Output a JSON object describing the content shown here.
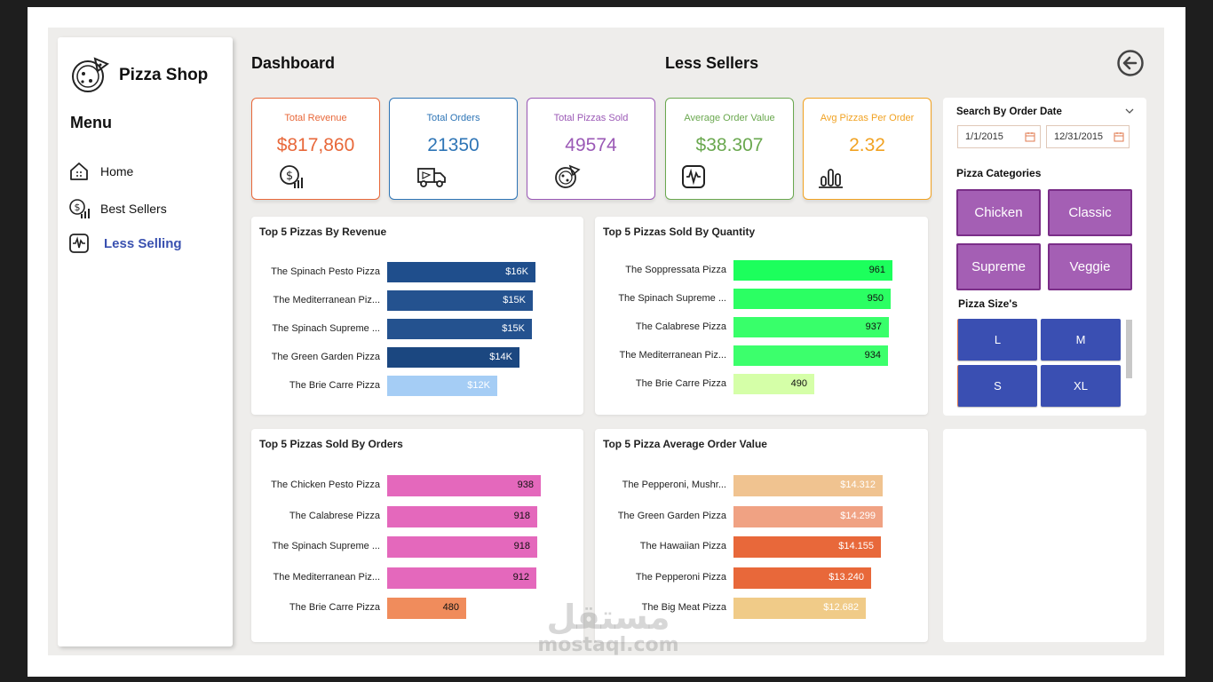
{
  "brand": {
    "shop_name": "Pizza Shop",
    "logo_icon": "pizza-logo-icon"
  },
  "sidebar": {
    "menu_title": "Menu",
    "items": [
      {
        "label": "Home",
        "icon": "home-icon",
        "active": false
      },
      {
        "label": "Best Sellers",
        "icon": "money-chart-icon",
        "active": false
      },
      {
        "label": "Less Selling",
        "icon": "pulse-icon",
        "active": true
      }
    ]
  },
  "header": {
    "title": "Dashboard",
    "subtitle": "Less Sellers",
    "back_icon": "back-arrow-icon"
  },
  "kpis": [
    {
      "label": "Total Revenue",
      "value": "$817,860",
      "color": "#e8683a",
      "icon": "revenue-icon"
    },
    {
      "label": "Total Orders",
      "value": "21350",
      "color": "#2e75b6",
      "icon": "delivery-truck-icon"
    },
    {
      "label": "Total Pizzas Sold",
      "value": "49574",
      "color": "#9b59b6",
      "icon": "pizza-icon"
    },
    {
      "label": "Average Order Value",
      "value": "$38.307",
      "color": "#6aa84f",
      "icon": "pulse-icon"
    },
    {
      "label": "Avg Pizzas Per Order",
      "value": "2.32",
      "color": "#f1a222",
      "icon": "bar-chart-icon"
    }
  ],
  "chart_data": [
    {
      "type": "bar",
      "title": "Top 5 Pizzas By Revenue",
      "categories": [
        "The Spinach Pesto Pizza",
        "The Mediterranean Piz...",
        "The Spinach Supreme ...",
        "The Green Garden Pizza",
        "The Brie Carre Pizza"
      ],
      "values": [
        15.6,
        15.36,
        15.28,
        13.96,
        11.59
      ],
      "labels": [
        "$16K",
        "$15K",
        "$15K",
        "$14K",
        "$12K"
      ],
      "colors": [
        "#1f4e8c",
        "#24528f",
        "#24528f",
        "#1b4780",
        "#a5cdf5"
      ],
      "label_colors": [
        "#ffffff",
        "#ffffff",
        "#ffffff",
        "#ffffff",
        "#ffffff"
      ],
      "xlim": [
        0,
        19
      ]
    },
    {
      "type": "bar",
      "title": "Top 5 Pizzas Sold By Quantity",
      "categories": [
        "The Soppressata Pizza",
        "The Spinach Supreme ...",
        "The Calabrese Pizza",
        "The Mediterranean Piz...",
        "The Brie Carre Pizza"
      ],
      "values": [
        961,
        950,
        937,
        934,
        490
      ],
      "labels": [
        "961",
        "950",
        "937",
        "934",
        "490"
      ],
      "colors": [
        "#1cff5c",
        "#2bff63",
        "#38ff6a",
        "#3cff6c",
        "#d5ffa8"
      ],
      "label_colors": [
        "#111111",
        "#111111",
        "#111111",
        "#111111",
        "#111111"
      ],
      "xlim": [
        0,
        1100
      ]
    },
    {
      "type": "bar",
      "title": "Top 5 Pizzas Sold By Orders",
      "categories": [
        "The Chicken Pesto Pizza",
        "The Calabrese Pizza",
        "The Spinach Supreme ...",
        "The Mediterranean Piz...",
        "The Brie Carre Pizza"
      ],
      "values": [
        938,
        918,
        918,
        912,
        480
      ],
      "labels": [
        "938",
        "918",
        "918",
        "912",
        "480"
      ],
      "colors": [
        "#e468bc",
        "#e468bc",
        "#e468bc",
        "#e468bc",
        "#f08c5c"
      ],
      "label_colors": [
        "#111111",
        "#111111",
        "#111111",
        "#111111",
        "#111111"
      ],
      "xlim": [
        0,
        1100
      ]
    },
    {
      "type": "bar",
      "title": "Top 5 Pizza Average Order Value",
      "categories": [
        "The Pepperoni, Mushr...",
        "The Green Garden Pizza",
        "The Hawaiian Pizza",
        "The Pepperoni Pizza",
        "The Big Meat Pizza"
      ],
      "values": [
        14.312,
        14.299,
        14.155,
        13.24,
        12.682
      ],
      "labels": [
        "$14.312",
        "$14.299",
        "$14.155",
        "$13.240",
        "$12.682"
      ],
      "colors": [
        "#f0c390",
        "#f0a283",
        "#e8683a",
        "#e8683a",
        "#f0cb88"
      ],
      "label_colors": [
        "#ffffff",
        "#ffffff",
        "#ffffff",
        "#ffffff",
        "#ffffff"
      ],
      "xlim": [
        0,
        17.5
      ]
    }
  ],
  "filters": {
    "date_title": "Search By Order Date",
    "date_from": "1/1/2015",
    "date_to": "12/31/2015",
    "categories_title": "Pizza Categories",
    "categories": [
      "Chicken",
      "Classic",
      "Supreme",
      "Veggie"
    ],
    "sizes_title": "Pizza Size's",
    "sizes": [
      "L",
      "M",
      "S",
      "XL"
    ]
  },
  "watermark": {
    "arabic": "مستقل",
    "latin": "mostaql.com"
  }
}
